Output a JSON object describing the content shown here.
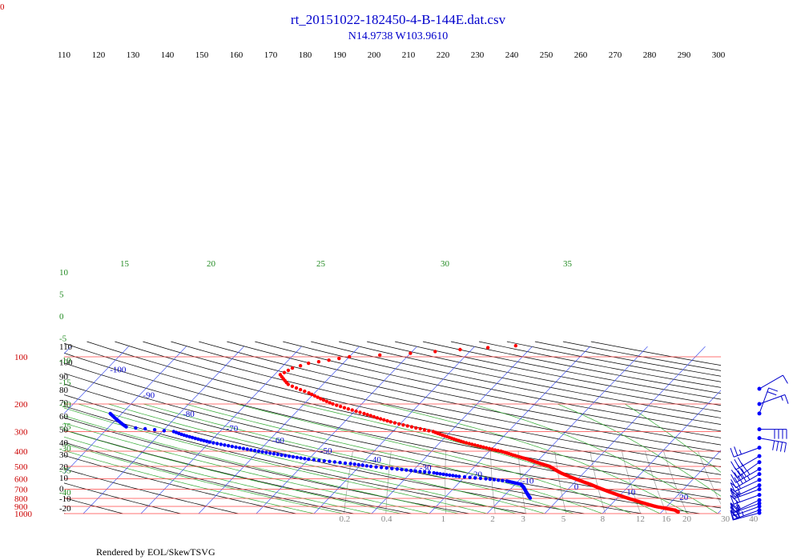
{
  "chart_data": {
    "type": "scatter",
    "title": "rt_20151022-182450-4-B-144E.dat.csv",
    "subtitle": "N14.9738 W103.9610",
    "corner_label": "0",
    "credit": "Rendered by EOL/SkewTSVG",
    "theta_ticks": [
      110,
      120,
      130,
      140,
      150,
      160,
      170,
      180,
      190,
      200,
      210,
      220,
      230,
      240,
      250,
      260,
      270,
      280,
      290,
      300
    ],
    "left_axis_ticks": [
      {
        "label": "110",
        "p": 86
      },
      {
        "label": "100",
        "p": 108
      },
      {
        "label": "90",
        "p": 133
      },
      {
        "label": "80",
        "p": 162
      },
      {
        "label": "70",
        "p": 195
      },
      {
        "label": "60",
        "p": 238
      },
      {
        "label": "50",
        "p": 290
      },
      {
        "label": "40",
        "p": 352
      },
      {
        "label": "30",
        "p": 420
      },
      {
        "label": "20",
        "p": 500
      },
      {
        "label": "10",
        "p": 590
      },
      {
        "label": "0",
        "p": 690
      },
      {
        "label": "-10",
        "p": 800
      },
      {
        "label": "-20",
        "p": 920
      }
    ],
    "pressure_levels": [
      "100",
      "200",
      "300",
      "400",
      "500",
      "600",
      "700",
      "800",
      "900",
      "1000"
    ],
    "isotherm_labels": [
      "-100",
      "-90",
      "-80",
      "-70",
      "-60",
      "-50",
      "-40",
      "-30",
      "-20",
      "-10",
      "0",
      "10",
      "20",
      "30"
    ],
    "pseudoadiabat_labels": [
      "15",
      "20",
      "25",
      "30",
      "35",
      "10",
      "5",
      "0",
      "-5",
      "-10",
      "-15",
      "-20",
      "-25",
      "-30",
      "-35",
      "-40"
    ],
    "mixing_ratio_labels": [
      "0.2",
      "0.4",
      "1",
      "2",
      "3",
      "5",
      "8",
      "12",
      "16",
      "20",
      "30",
      "40"
    ],
    "series": [
      {
        "name": "",
        "color": "#ff0000",
        "variable": "temperature",
        "points": [
          [
            85,
            -33
          ],
          [
            90,
            -42
          ],
          [
            95,
            -50
          ],
          [
            100,
            -60
          ],
          [
            105,
            -63
          ],
          [
            110,
            -66
          ],
          [
            118,
            -68
          ],
          [
            130,
            -69
          ],
          [
            150,
            -66
          ],
          [
            170,
            -61
          ],
          [
            200,
            -55
          ],
          [
            230,
            -48
          ],
          [
            260,
            -42
          ],
          [
            300,
            -33
          ],
          [
            350,
            -26
          ],
          [
            400,
            -18
          ],
          [
            450,
            -12
          ],
          [
            500,
            -7
          ],
          [
            550,
            -4
          ],
          [
            600,
            -0.5
          ],
          [
            650,
            3
          ],
          [
            700,
            6
          ],
          [
            750,
            9
          ],
          [
            800,
            12
          ],
          [
            850,
            15
          ],
          [
            900,
            18
          ],
          [
            950,
            22
          ],
          [
            980,
            23
          ]
        ]
      },
      {
        "name": "",
        "color": "#0000ff",
        "variable": "dewpoint",
        "points": [
          [
            230,
            -92
          ],
          [
            240,
            -91
          ],
          [
            260,
            -89
          ],
          [
            280,
            -87
          ],
          [
            300,
            -78
          ],
          [
            320,
            -75
          ],
          [
            350,
            -70
          ],
          [
            400,
            -60
          ],
          [
            450,
            -50
          ],
          [
            480,
            -42
          ],
          [
            500,
            -38
          ],
          [
            520,
            -33
          ],
          [
            550,
            -26
          ],
          [
            580,
            -21
          ],
          [
            600,
            -16
          ],
          [
            620,
            -12
          ],
          [
            650,
            -9
          ],
          [
            680,
            -8
          ],
          [
            720,
            -7
          ],
          [
            760,
            -6
          ],
          [
            800,
            -5
          ]
        ]
      }
    ],
    "wind_barbs": [
      {
        "p": 160,
        "dir": 60,
        "speed": 10
      },
      {
        "p": 200,
        "dir": 70,
        "speed": 15
      },
      {
        "p": 230,
        "dir": 20,
        "speed": 20
      },
      {
        "p": 290,
        "dir": 90,
        "speed": 40
      },
      {
        "p": 330,
        "dir": 100,
        "speed": 40
      },
      {
        "p": 380,
        "dir": 250,
        "speed": 25
      },
      {
        "p": 430,
        "dir": 240,
        "speed": 30
      },
      {
        "p": 470,
        "dir": 235,
        "speed": 40
      },
      {
        "p": 520,
        "dir": 240,
        "speed": 45
      },
      {
        "p": 560,
        "dir": 240,
        "speed": 45
      },
      {
        "p": 610,
        "dir": 245,
        "speed": 55
      },
      {
        "p": 660,
        "dir": 245,
        "speed": 55
      },
      {
        "p": 700,
        "dir": 250,
        "speed": 55
      },
      {
        "p": 760,
        "dir": 250,
        "speed": 60
      },
      {
        "p": 820,
        "dir": 245,
        "speed": 55
      },
      {
        "p": 860,
        "dir": 250,
        "speed": 60
      },
      {
        "p": 900,
        "dir": 250,
        "speed": 60
      },
      {
        "p": 950,
        "dir": 250,
        "speed": 65
      },
      {
        "p": 990,
        "dir": 255,
        "speed": 60
      }
    ],
    "pressure_range": [
      1000,
      86
    ],
    "temperature_range": [
      -40,
      50
    ],
    "grid": true
  },
  "colors": {
    "isobar": "#ff4444",
    "isotherm": "#4455ee",
    "dry_adiabat": "#000000",
    "moist_adiabat": "#33aa33",
    "mixing_ratio": "#aaaaaa",
    "title": "#0000cc"
  }
}
